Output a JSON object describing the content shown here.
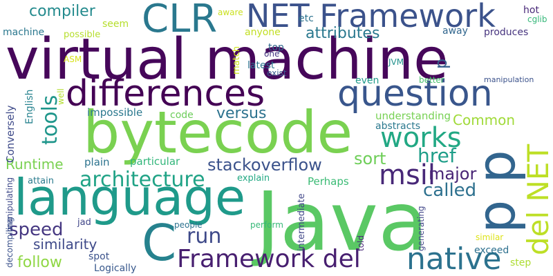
{
  "word_cloud": {
    "words": [
      {
        "text": "virtual machine",
        "color": "#46075a"
      },
      {
        "text": "Java",
        "color": "#5ac864"
      },
      {
        "text": "bytecode",
        "color": "#7ad151"
      },
      {
        "text": "language",
        "color": "#1f9a8a"
      },
      {
        "text": "differences",
        "color": "#440154"
      },
      {
        "text": "question",
        "color": "#39568c"
      },
      {
        "text": "NET Framework",
        "color": "#3b528b"
      },
      {
        "text": "CLR",
        "color": "#2a788e"
      },
      {
        "text": "p p",
        "color": "#32658e"
      },
      {
        "text": "del NET",
        "color": "#bddf26"
      },
      {
        "text": "C",
        "color": "#26828e"
      },
      {
        "text": "native",
        "color": "#2c728e"
      },
      {
        "text": "Framework del",
        "color": "#481f70"
      },
      {
        "text": "works",
        "color": "#22a884"
      },
      {
        "text": "msil",
        "color": "#482878"
      },
      {
        "text": "architecture",
        "color": "#20a386"
      },
      {
        "text": "tools",
        "color": "#1f968b"
      },
      {
        "text": "compiler",
        "color": "#238a8d"
      },
      {
        "text": "stackoverflow",
        "color": "#3b528b"
      },
      {
        "text": "run",
        "color": "#3e4989"
      },
      {
        "text": "speed",
        "color": "#453781"
      },
      {
        "text": "href",
        "color": "#1f9e89"
      },
      {
        "text": "sort",
        "color": "#6ece58"
      },
      {
        "text": "called",
        "color": "#2d708e"
      },
      {
        "text": "major",
        "color": "#482475"
      },
      {
        "text": "versus",
        "color": "#2c728e"
      },
      {
        "text": "attributes",
        "color": "#2a788e"
      },
      {
        "text": "Runtime",
        "color": "#7ad151"
      },
      {
        "text": "Common",
        "color": "#a0da39"
      },
      {
        "text": "similarity",
        "color": "#3e4989"
      },
      {
        "text": "follow",
        "color": "#8fd744"
      },
      {
        "text": "Conversely",
        "color": "#3e4a89"
      },
      {
        "text": "machine",
        "color": "#2a778e"
      },
      {
        "text": "possible",
        "color": "#b5de2b"
      },
      {
        "text": "seem",
        "color": "#b5de2b"
      },
      {
        "text": "anyone",
        "color": "#c2df23"
      },
      {
        "text": "etc",
        "color": "#2c728e"
      },
      {
        "text": "aware",
        "color": "#cae11f"
      },
      {
        "text": "hot",
        "color": "#482878"
      },
      {
        "text": "cglib",
        "color": "#35b779"
      },
      {
        "text": "away",
        "color": "#31668e"
      },
      {
        "text": "produces",
        "color": "#46337e"
      },
      {
        "text": "ASM",
        "color": "#d8e219"
      },
      {
        "text": "top",
        "color": "#31688e"
      },
      {
        "text": "one",
        "color": "#453781"
      },
      {
        "text": "latest",
        "color": "#2b748e"
      },
      {
        "text": "match",
        "color": "#cde11d"
      },
      {
        "text": "JVM",
        "color": "#21918c"
      },
      {
        "text": "p",
        "color": "#34608d"
      },
      {
        "text": "exist",
        "color": "#38598c"
      },
      {
        "text": "better",
        "color": "#4ac16d"
      },
      {
        "text": "manipulation",
        "color": "#3b528b"
      },
      {
        "text": "English",
        "color": "#26828e"
      },
      {
        "text": "well",
        "color": "#b2dd2d"
      },
      {
        "text": "impossible",
        "color": "#2a788e"
      },
      {
        "text": "code",
        "color": "#6ccd5a"
      },
      {
        "text": "even",
        "color": "#1f9a8a"
      },
      {
        "text": "understanding",
        "color": "#77d153"
      },
      {
        "text": "abstracts",
        "color": "#2a788e"
      },
      {
        "text": "plain",
        "color": "#2c738e"
      },
      {
        "text": "particular",
        "color": "#32b67a"
      },
      {
        "text": "manipulating",
        "color": "#3e4989"
      },
      {
        "text": "attain",
        "color": "#297b8e"
      },
      {
        "text": "explain",
        "color": "#23a983"
      },
      {
        "text": "Perhaps",
        "color": "#3bbb75"
      },
      {
        "text": "intermediate",
        "color": "#404688"
      },
      {
        "text": "decompiling",
        "color": "#3b528b"
      },
      {
        "text": "jad",
        "color": "#404688"
      },
      {
        "text": "people",
        "color": "#2c728e"
      },
      {
        "text": "perform",
        "color": "#37b878"
      },
      {
        "text": "told",
        "color": "#482878"
      },
      {
        "text": "generating",
        "color": "#404688"
      },
      {
        "text": "similar",
        "color": "#dde318"
      },
      {
        "text": "spot",
        "color": "#3b528b"
      },
      {
        "text": "exceed",
        "color": "#2d708e"
      },
      {
        "text": "Logically",
        "color": "#38588c"
      },
      {
        "text": "step",
        "color": "#addc30"
      }
    ]
  }
}
